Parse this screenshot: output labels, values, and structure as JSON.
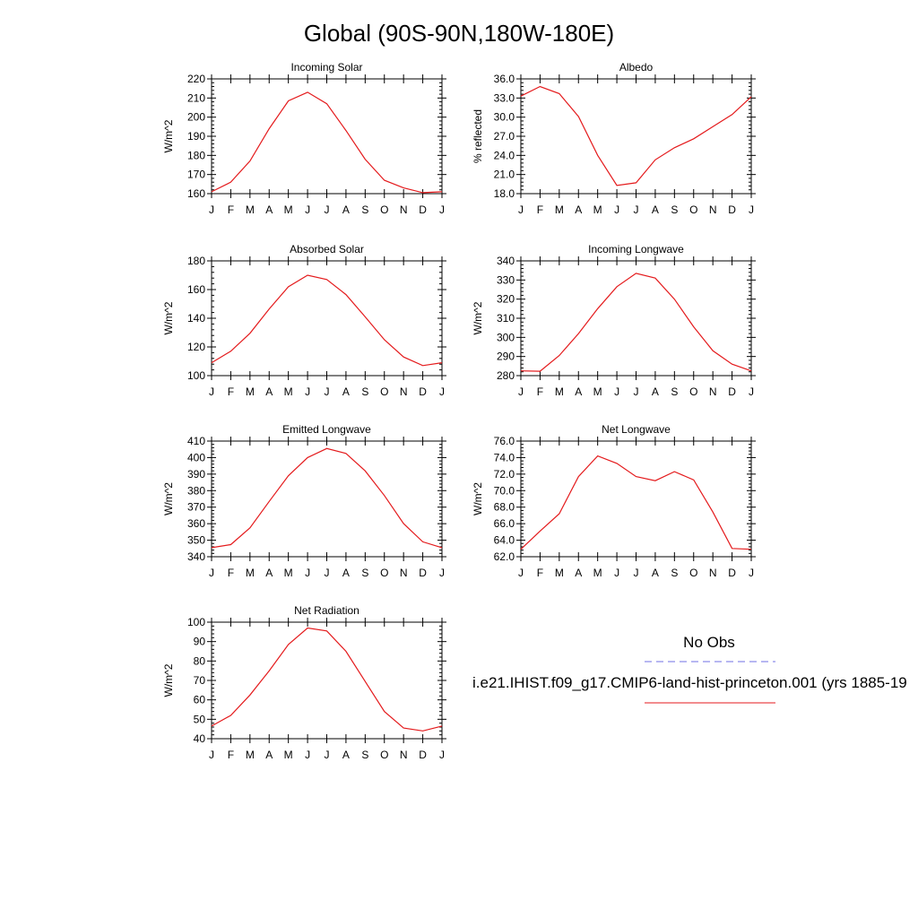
{
  "figure": {
    "title": "Global (90S-90N,180W-180E)",
    "legend": {
      "obs_label": "No Obs",
      "obs_color": "#6f6fe6",
      "model_label": "i.e21.IHIST.f09_g17.CMIP6-land-hist-princeton.001 (yrs 1885-19",
      "model_color": "#e41a1c"
    }
  },
  "chart_data": [
    {
      "type": "line",
      "title": "Incoming Solar",
      "ylabel": "W/m^2",
      "ylim": [
        160,
        220
      ],
      "yticks": [
        "160",
        "170",
        "180",
        "190",
        "200",
        "210",
        "220"
      ],
      "x": [
        "J",
        "F",
        "M",
        "A",
        "M",
        "J",
        "J",
        "A",
        "S",
        "O",
        "N",
        "D",
        "J"
      ],
      "series": [
        {
          "values": [
            161,
            166,
            177,
            194,
            208.5,
            213,
            207,
            193,
            178,
            167,
            163,
            160.5,
            161
          ]
        }
      ]
    },
    {
      "type": "line",
      "title": "Albedo",
      "ylabel": "% reflected",
      "ylim": [
        18,
        36
      ],
      "yticks": [
        "18.0",
        "21.0",
        "24.0",
        "27.0",
        "30.0",
        "33.0",
        "36.0"
      ],
      "x": [
        "J",
        "F",
        "M",
        "A",
        "M",
        "J",
        "J",
        "A",
        "S",
        "O",
        "N",
        "D",
        "J"
      ],
      "series": [
        {
          "values": [
            33.3,
            34.8,
            33.7,
            30.1,
            24.0,
            19.3,
            19.7,
            23.3,
            25.2,
            26.6,
            28.5,
            30.4,
            33.2
          ]
        }
      ]
    },
    {
      "type": "line",
      "title": "Absorbed Solar",
      "ylabel": "W/m^2",
      "ylim": [
        100,
        180
      ],
      "yticks": [
        "100",
        "120",
        "140",
        "160",
        "180"
      ],
      "x": [
        "J",
        "F",
        "M",
        "A",
        "M",
        "J",
        "J",
        "A",
        "S",
        "O",
        "N",
        "D",
        "J"
      ],
      "series": [
        {
          "values": [
            109,
            117,
            129.5,
            146.5,
            162,
            170,
            167,
            156.5,
            141,
            125,
            113,
            107,
            109
          ]
        }
      ]
    },
    {
      "type": "line",
      "title": "Incoming Longwave",
      "ylabel": "W/m^2",
      "ylim": [
        280,
        340
      ],
      "yticks": [
        "280",
        "290",
        "300",
        "310",
        "320",
        "330",
        "340"
      ],
      "x": [
        "J",
        "F",
        "M",
        "A",
        "M",
        "J",
        "J",
        "A",
        "S",
        "O",
        "N",
        "D",
        "J"
      ],
      "series": [
        {
          "values": [
            282.5,
            282.3,
            290.5,
            302,
            315,
            326.5,
            333.5,
            331,
            320,
            305.5,
            293,
            286,
            282.5
          ]
        }
      ]
    },
    {
      "type": "line",
      "title": "Emitted Longwave",
      "ylabel": "W/m^2",
      "ylim": [
        340,
        410
      ],
      "yticks": [
        "340",
        "350",
        "360",
        "370",
        "380",
        "390",
        "400",
        "410"
      ],
      "x": [
        "J",
        "F",
        "M",
        "A",
        "M",
        "J",
        "J",
        "A",
        "S",
        "O",
        "N",
        "D",
        "J"
      ],
      "series": [
        {
          "values": [
            345.5,
            347.3,
            357.5,
            373.5,
            389,
            400,
            405.5,
            402.5,
            392,
            377,
            360,
            349,
            345.5
          ]
        }
      ]
    },
    {
      "type": "line",
      "title": "Net Longwave",
      "ylabel": "W/m^2",
      "ylim": [
        62,
        76
      ],
      "yticks": [
        "62.0",
        "64.0",
        "66.0",
        "68.0",
        "70.0",
        "72.0",
        "74.0",
        "76.0"
      ],
      "x": [
        "J",
        "F",
        "M",
        "A",
        "M",
        "J",
        "J",
        "A",
        "S",
        "O",
        "N",
        "D",
        "J"
      ],
      "series": [
        {
          "values": [
            62.9,
            65.1,
            67.2,
            71.7,
            74.2,
            73.3,
            71.7,
            71.2,
            72.3,
            71.3,
            67.4,
            63.0,
            62.9
          ]
        }
      ]
    },
    {
      "type": "line",
      "title": "Net Radiation",
      "ylabel": "W/m^2",
      "ylim": [
        40,
        100
      ],
      "yticks": [
        "40",
        "50",
        "60",
        "70",
        "80",
        "90",
        "100"
      ],
      "x": [
        "J",
        "F",
        "M",
        "A",
        "M",
        "J",
        "J",
        "A",
        "S",
        "O",
        "N",
        "D",
        "J"
      ],
      "series": [
        {
          "values": [
            46.5,
            52,
            62.5,
            75,
            88.5,
            97,
            95.5,
            85,
            69.5,
            54,
            45.5,
            44,
            46.5
          ]
        }
      ]
    }
  ]
}
